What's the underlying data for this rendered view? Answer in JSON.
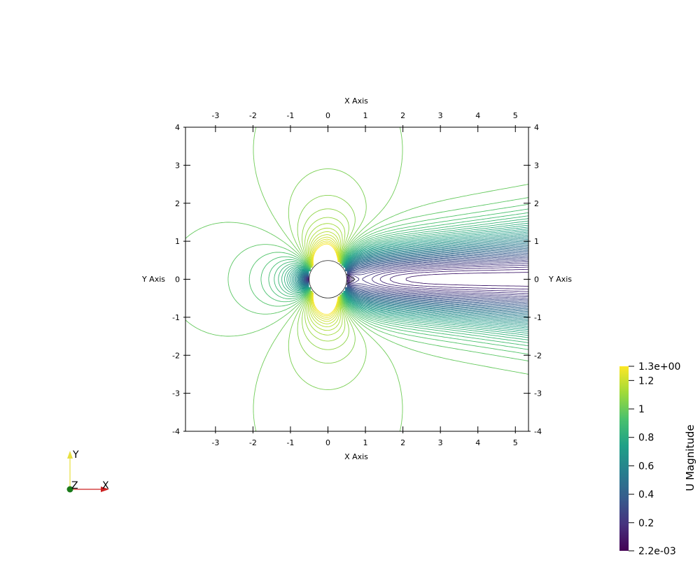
{
  "chart_data": {
    "type": "contour",
    "field_name": "U Magnitude",
    "top_axis_title": "X Axis",
    "bottom_axis_title": "X Axis",
    "left_axis_title": "Y Axis",
    "right_axis_title": "Y Axis",
    "x_range": [
      -3.8,
      5.35
    ],
    "y_range": [
      -4,
      4
    ],
    "x_ticks": [
      -3,
      -2,
      -1,
      0,
      1,
      2,
      3,
      4,
      5
    ],
    "x_tick_labels": [
      "-3",
      "-2",
      "-1",
      "0",
      "1",
      "2",
      "3",
      "4",
      "5"
    ],
    "y_ticks": [
      4,
      3,
      2,
      1,
      0,
      -1,
      -2,
      -3,
      -4
    ],
    "y_tick_labels": [
      "4",
      "3",
      "2",
      "1",
      "0",
      "-1",
      "-2",
      "-3",
      "-4"
    ],
    "obstacle": {
      "shape": "circle",
      "center": [
        0,
        0
      ],
      "radius": 0.5
    },
    "value_range": [
      0.0022,
      1.3
    ],
    "colormap": "viridis",
    "colormap_stops": [
      "#440154",
      "#46327e",
      "#365c8d",
      "#277f8e",
      "#1fa187",
      "#4ac16d",
      "#a0da39",
      "#fde725"
    ],
    "colorbar_tick_labels": [
      "1.3e+00",
      "1.2",
      "1",
      "0.8",
      "0.6",
      "0.4",
      "0.2",
      "2.2e-03"
    ],
    "colorbar_tick_values": [
      1.3,
      1.2,
      1.0,
      0.8,
      0.6,
      0.4,
      0.2,
      0.0022
    ]
  },
  "orientation_axes": {
    "y_label": "Y",
    "z_label": "Z",
    "x_label": "X",
    "colors": {
      "x": "#cc2222",
      "y": "#e8e040",
      "z": "#1a7a1a"
    }
  }
}
